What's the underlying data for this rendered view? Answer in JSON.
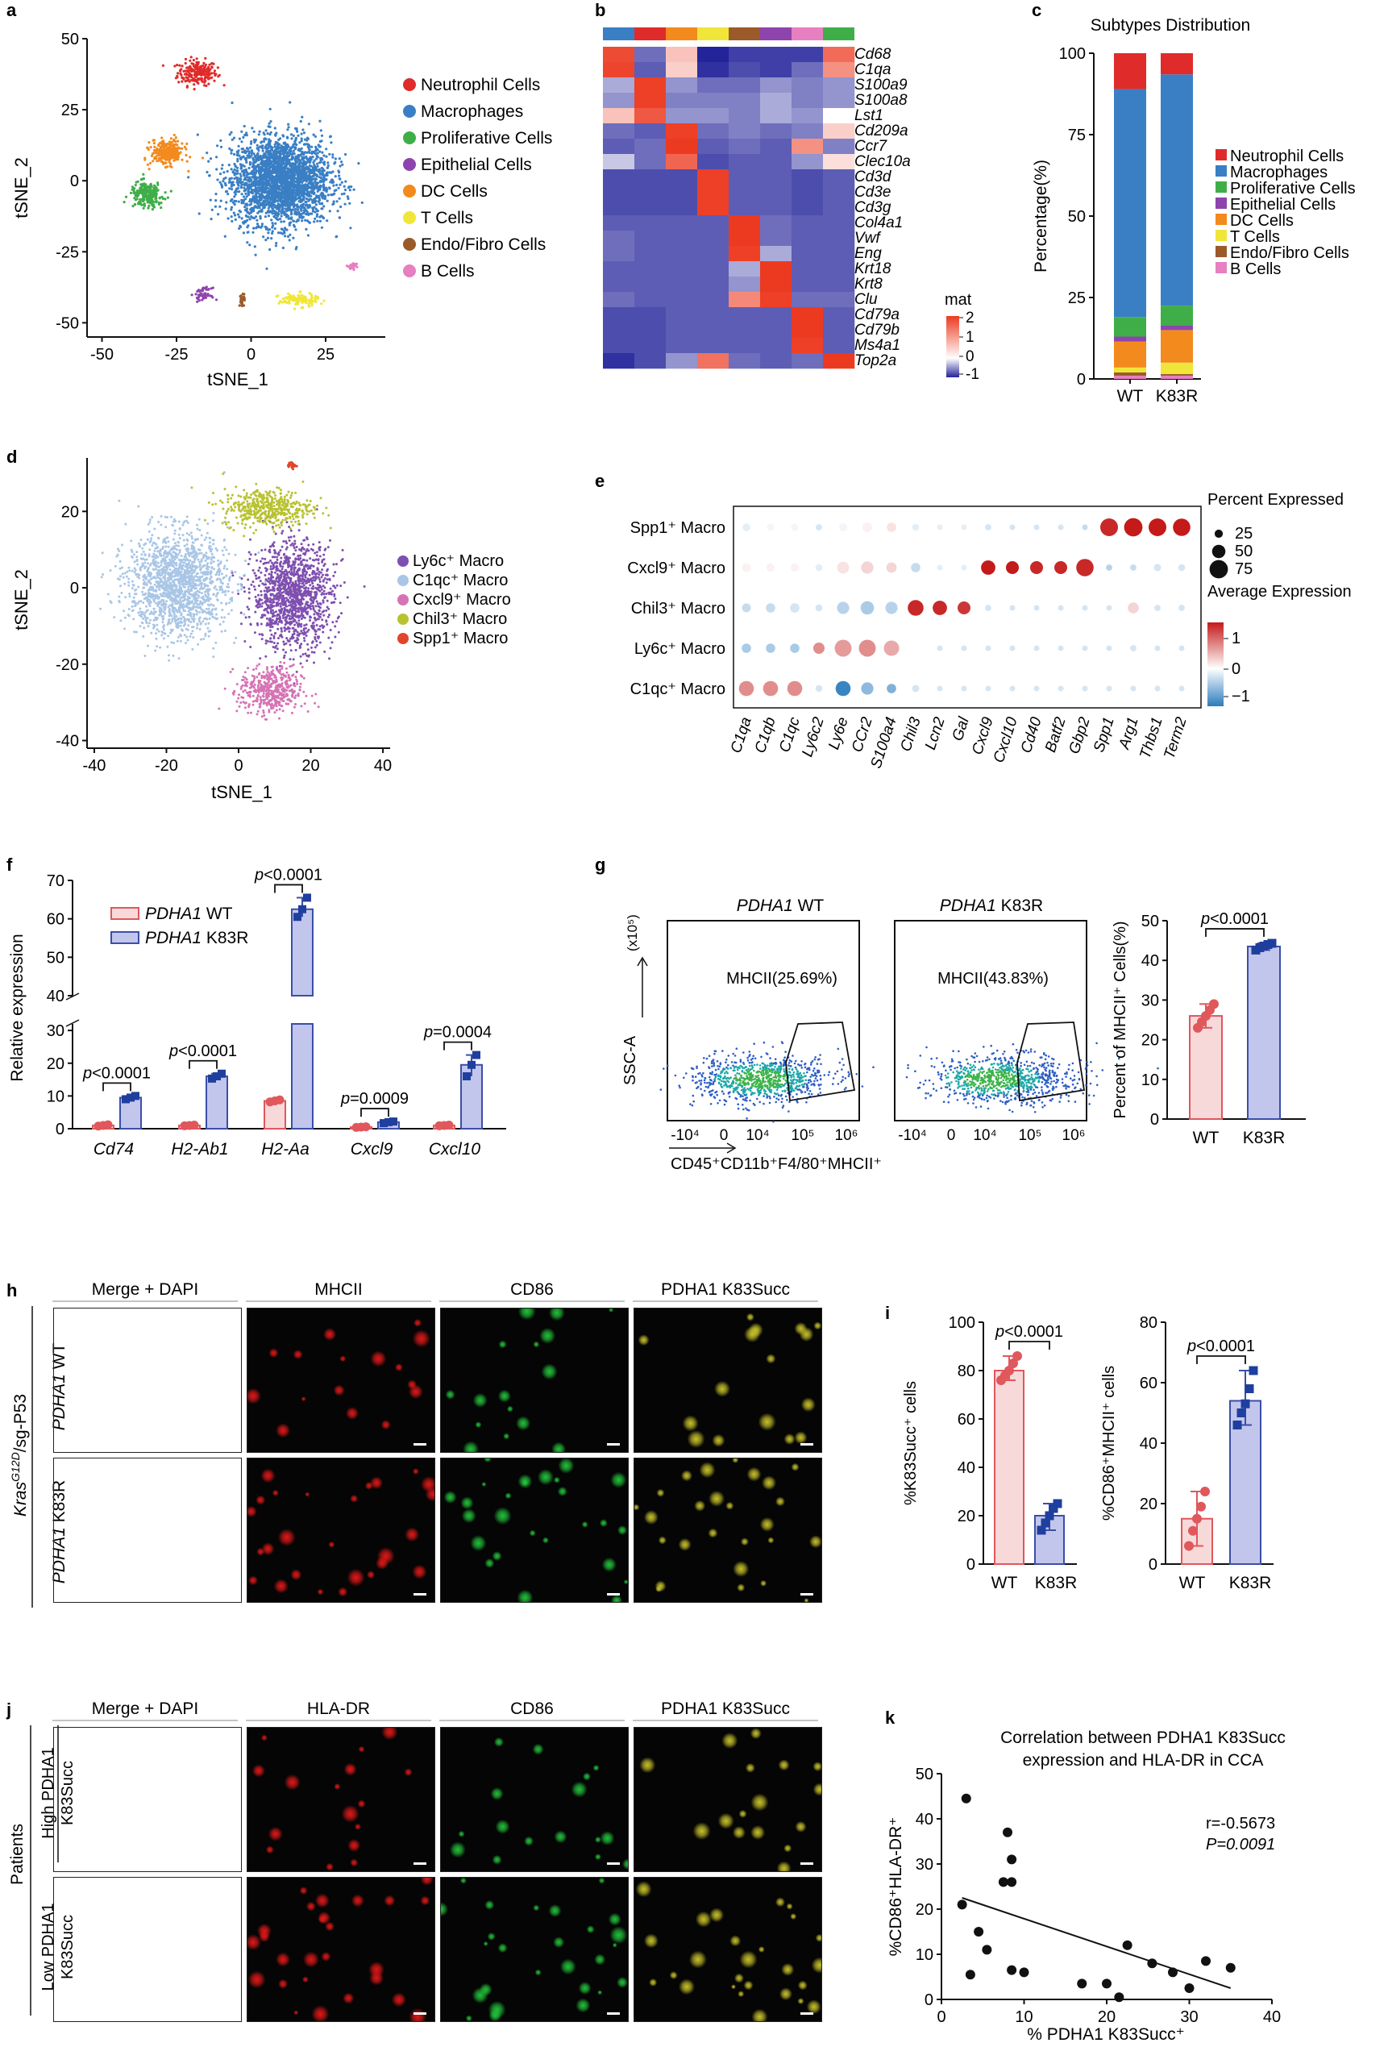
{
  "panels": {
    "a": "a",
    "b": "b",
    "c": "c",
    "d": "d",
    "e": "e",
    "f": "f",
    "g": "g",
    "h": "h",
    "i": "i",
    "j": "j",
    "k": "k"
  },
  "colors": {
    "neutrophil": "#e02b2b",
    "macrophage": "#3a7fc4",
    "proliferative": "#3fae49",
    "epithelial": "#8e44ad",
    "dc": "#f28a1e",
    "tcell": "#f0e63a",
    "endo": "#9b5a2a",
    "bcell": "#e77fc0",
    "ly6c": "#7e4fb0",
    "c1qc": "#a9c6e6",
    "cxcl9": "#d673b5",
    "chil3": "#b8c230",
    "spp1": "#e0452b",
    "wt_bar": "#f7d9da",
    "wt_edge": "#e0575c",
    "k83r_bar": "#c3c6ec",
    "k83r_edge": "#3a4fa8",
    "point_dark": "#1f3f9e"
  },
  "chart_data": [
    {
      "id": "a",
      "type": "scatter",
      "xlabel": "tSNE_1",
      "ylabel": "tSNE_2",
      "xticks": [
        "-50",
        "-25",
        "0",
        "25"
      ],
      "yticks": [
        "50",
        "25",
        "0",
        "-25",
        "-50"
      ],
      "xlim": [
        -55,
        45
      ],
      "ylim": [
        -55,
        50
      ],
      "legend": [
        "Neutrophil Cells",
        "Macrophages",
        "Proliferative Cells",
        "Epithelial Cells",
        "DC Cells",
        "T Cells",
        "Endo/Fibro Cells",
        "B Cells"
      ],
      "clusters": [
        {
          "name": "Neutrophil Cells",
          "cx": -18,
          "cy": 38,
          "sx": 6,
          "sy": 4
        },
        {
          "name": "Macrophages",
          "cx": 10,
          "cy": 0,
          "sx": 15,
          "sy": 14
        },
        {
          "name": "Proliferative Cells",
          "cx": -35,
          "cy": -5,
          "sx": 5,
          "sy": 4
        },
        {
          "name": "Epithelial Cells",
          "cx": -16,
          "cy": -40,
          "sx": 2.5,
          "sy": 2
        },
        {
          "name": "DC Cells",
          "cx": -28,
          "cy": 10,
          "sx": 5,
          "sy": 4
        },
        {
          "name": "T Cells",
          "cx": 16,
          "cy": -42,
          "sx": 6,
          "sy": 2
        },
        {
          "name": "Endo/Fibro Cells",
          "cx": -3,
          "cy": -42,
          "sx": 0.8,
          "sy": 2
        },
        {
          "name": "B Cells",
          "cx": 34,
          "cy": -30,
          "sx": 1.5,
          "sy": 1
        }
      ]
    },
    {
      "id": "b",
      "type": "heatmap",
      "rows": [
        "Cd68",
        "C1qa",
        "S100a9",
        "S100a8",
        "Lst1",
        "Cd209a",
        "Ccr7",
        "Clec10a",
        "Cd3d",
        "Cd3e",
        "Cd3g",
        "Col4a1",
        "Vwf",
        "Eng",
        "Krt18",
        "Krt8",
        "Clu",
        "Cd79a",
        "Cd79b",
        "Ms4a1",
        "Top2a"
      ],
      "legend_title": "mat",
      "legend_ticks": [
        "2",
        "1",
        "0",
        "-1"
      ],
      "range": [
        -1,
        2.2
      ],
      "values": [
        [
          1.8,
          -0.5,
          0.3,
          -1,
          -0.8,
          -0.8,
          -0.8,
          1.3
        ],
        [
          1.9,
          -0.6,
          0.2,
          -0.9,
          -0.7,
          -0.8,
          -0.5,
          0.8
        ],
        [
          -0.2,
          2,
          -0.3,
          -0.5,
          -0.5,
          -0.3,
          -0.4,
          -0.3
        ],
        [
          -0.3,
          2,
          -0.4,
          -0.4,
          -0.4,
          -0.2,
          -0.4,
          -0.3
        ],
        [
          0.3,
          1.6,
          -0.3,
          -0.3,
          -0.4,
          -0.2,
          -0.3,
          0
        ],
        [
          -0.5,
          -0.6,
          2,
          -0.5,
          -0.4,
          -0.5,
          -0.4,
          0.2
        ],
        [
          -0.6,
          -0.5,
          2.1,
          -0.6,
          -0.5,
          -0.6,
          0.8,
          -0.4
        ],
        [
          -0.1,
          -0.5,
          1.4,
          -0.7,
          -0.6,
          -0.6,
          -0.3,
          0.1
        ],
        [
          -0.7,
          -0.7,
          -0.7,
          2,
          -0.6,
          -0.6,
          -0.7,
          -0.6
        ],
        [
          -0.7,
          -0.7,
          -0.7,
          2,
          -0.6,
          -0.6,
          -0.7,
          -0.6
        ],
        [
          -0.7,
          -0.7,
          -0.7,
          2,
          -0.6,
          -0.6,
          -0.7,
          -0.6
        ],
        [
          -0.6,
          -0.6,
          -0.6,
          -0.6,
          2.1,
          -0.5,
          -0.6,
          -0.6
        ],
        [
          -0.5,
          -0.6,
          -0.6,
          -0.6,
          2.1,
          -0.5,
          -0.6,
          -0.6
        ],
        [
          -0.5,
          -0.6,
          -0.6,
          -0.6,
          2,
          -0.2,
          -0.6,
          -0.6
        ],
        [
          -0.6,
          -0.6,
          -0.6,
          -0.6,
          -0.2,
          2.1,
          -0.6,
          -0.6
        ],
        [
          -0.6,
          -0.6,
          -0.6,
          -0.6,
          -0.3,
          2.1,
          -0.6,
          -0.6
        ],
        [
          -0.5,
          -0.6,
          -0.6,
          -0.6,
          0.9,
          2,
          -0.5,
          -0.5
        ],
        [
          -0.7,
          -0.7,
          -0.6,
          -0.6,
          -0.6,
          -0.6,
          2.1,
          -0.6
        ],
        [
          -0.7,
          -0.7,
          -0.6,
          -0.6,
          -0.6,
          -0.6,
          2.1,
          -0.6
        ],
        [
          -0.7,
          -0.7,
          -0.6,
          -0.6,
          -0.6,
          -0.6,
          2,
          -0.6
        ],
        [
          -0.9,
          -0.7,
          -0.3,
          1.2,
          -0.5,
          -0.6,
          -0.5,
          2.1
        ]
      ]
    },
    {
      "id": "c",
      "type": "bar",
      "stacked": true,
      "title": "Subtypes Distribution",
      "ylabel": "Percentage(%)",
      "categories": [
        "WT",
        "K83R"
      ],
      "yticks": [
        "0",
        "25",
        "50",
        "75",
        "100"
      ],
      "ylim": [
        0,
        100
      ],
      "series": [
        {
          "name": "B Cells",
          "values": [
            1,
            1
          ]
        },
        {
          "name": "Endo/Fibro Cells",
          "values": [
            1,
            0.5
          ]
        },
        {
          "name": "T Cells",
          "values": [
            1.5,
            3.5
          ]
        },
        {
          "name": "DC Cells",
          "values": [
            8,
            10
          ]
        },
        {
          "name": "Epithelial Cells",
          "values": [
            1.5,
            1.5
          ]
        },
        {
          "name": "Proliferative Cells",
          "values": [
            6,
            6
          ]
        },
        {
          "name": "Macrophages",
          "values": [
            70,
            71
          ]
        },
        {
          "name": "Neutrophil Cells",
          "values": [
            11,
            6.5
          ]
        }
      ]
    },
    {
      "id": "d",
      "type": "scatter",
      "xlabel": "tSNE_1",
      "ylabel": "tSNE_2",
      "xticks": [
        "-40",
        "-20",
        "0",
        "20",
        "40"
      ],
      "yticks": [
        "20",
        "0",
        "-20",
        "-40"
      ],
      "xlim": [
        -42,
        42
      ],
      "ylim": [
        -42,
        34
      ],
      "legend": [
        "Ly6c⁺ Macro",
        "C1qc⁺ Macro",
        "Cxcl9⁺ Macro",
        "Chil3⁺ Macro",
        "Spp1⁺ Macro"
      ],
      "clusters": [
        {
          "name": "Ly6c⁺ Macro",
          "cx": 15,
          "cy": -2,
          "sx": 9,
          "sy": 11
        },
        {
          "name": "C1qc⁺ Macro",
          "cx": -17,
          "cy": 1,
          "sx": 11,
          "sy": 11
        },
        {
          "name": "Cxcl9⁺ Macro",
          "cx": 9,
          "cy": -27,
          "sx": 7,
          "sy": 5
        },
        {
          "name": "Chil3⁺ Macro",
          "cx": 8,
          "cy": 21,
          "sx": 10,
          "sy": 4
        },
        {
          "name": "Spp1⁺ Macro",
          "cx": 15,
          "cy": 32,
          "sx": 1,
          "sy": 0.6
        }
      ]
    },
    {
      "id": "e",
      "type": "scatter",
      "subtype": "dotplot",
      "rows": [
        "Spp1⁺ Macro",
        "Cxcl9⁺ Macro",
        "Chil3⁺ Macro",
        "Ly6c⁺ Macro",
        "C1qc⁺ Macro"
      ],
      "cols": [
        "C1qa",
        "C1qb",
        "C1qc",
        "Ly6c2",
        "Ly6e",
        "CCr2",
        "S100a4",
        "Chil3",
        "Lcn2",
        "Gal",
        "Cxcl9",
        "Cxcl10",
        "Cd40",
        "Batf2",
        "Gbp2",
        "Spp1",
        "Arg1",
        "Thbs1",
        "Term2"
      ],
      "size_title": "Percent Expressed",
      "size_ticks": [
        "25",
        "50",
        "75"
      ],
      "color_title": "Average Expression",
      "color_ticks": [
        "1",
        "0",
        "−1"
      ],
      "expression": [
        [
          -0.2,
          -0.1,
          -0.1,
          -0.3,
          -0.1,
          0.1,
          0.2,
          -0.2,
          -0.2,
          -0.2,
          -0.3,
          -0.3,
          -0.3,
          -0.3,
          -0.4,
          1.5,
          1.6,
          1.6,
          1.6
        ],
        [
          0.1,
          0.1,
          0.1,
          -0.2,
          0.2,
          0.3,
          0.3,
          -0.4,
          -0.2,
          -0.2,
          1.6,
          1.6,
          1.5,
          1.5,
          1.5,
          -0.5,
          -0.4,
          -0.3,
          -0.3
        ],
        [
          -0.4,
          -0.4,
          -0.3,
          -0.3,
          -0.5,
          -0.6,
          -0.5,
          1.5,
          1.5,
          1.4,
          -0.3,
          -0.3,
          -0.3,
          -0.3,
          -0.3,
          -0.3,
          0.3,
          -0.3,
          -0.3
        ],
        [
          -0.6,
          -0.6,
          -0.6,
          0.8,
          0.7,
          0.8,
          0.6,
          0,
          -0.3,
          -0.3,
          -0.3,
          -0.3,
          -0.3,
          -0.3,
          -0.3,
          -0.3,
          -0.3,
          -0.3,
          -0.3
        ],
        [
          0.8,
          0.8,
          0.8,
          -0.3,
          -1.4,
          -0.8,
          -0.9,
          -0.3,
          -0.3,
          -0.3,
          -0.3,
          -0.3,
          -0.3,
          -0.3,
          -0.3,
          -0.3,
          -0.3,
          -0.3,
          -0.3
        ]
      ],
      "percent": [
        [
          22,
          20,
          20,
          15,
          25,
          32,
          30,
          18,
          12,
          12,
          15,
          12,
          12,
          12,
          12,
          72,
          75,
          72,
          70
        ],
        [
          28,
          25,
          25,
          18,
          42,
          45,
          35,
          30,
          12,
          12,
          55,
          48,
          48,
          48,
          70,
          15,
          15,
          20,
          18
        ],
        [
          28,
          30,
          30,
          18,
          45,
          50,
          45,
          62,
          55,
          48,
          15,
          12,
          12,
          12,
          12,
          12,
          38,
          15,
          15
        ],
        [
          30,
          30,
          30,
          40,
          68,
          68,
          60,
          35,
          12,
          12,
          12,
          12,
          12,
          12,
          12,
          12,
          15,
          12,
          12
        ],
        [
          58,
          58,
          58,
          18,
          58,
          45,
          30,
          20,
          12,
          12,
          12,
          12,
          12,
          12,
          12,
          12,
          12,
          12,
          12
        ]
      ]
    },
    {
      "id": "f",
      "type": "bar",
      "ylabel": "Relative expression",
      "categories": [
        "Cd74",
        "H2-Ab1",
        "H2-Aa",
        "Cxcl9",
        "Cxcl10"
      ],
      "series": [
        {
          "name_gene": "PDHA1",
          "name_rest": " WT",
          "values": [
            1,
            1,
            8.5,
            0.5,
            1
          ]
        },
        {
          "name_gene": "PDHA1",
          "name_rest": " K83R",
          "values": [
            9.5,
            16,
            62.5,
            2,
            19.5
          ]
        }
      ],
      "points_wt": [
        [
          0.8,
          1.0,
          1.2
        ],
        [
          0.9,
          1.0,
          1.1
        ],
        [
          8.2,
          8.5,
          8.8
        ],
        [
          0.4,
          0.5,
          0.6
        ],
        [
          0.9,
          1.0,
          1.1
        ]
      ],
      "points_k83r": [
        [
          9.0,
          9.5,
          10.0
        ],
        [
          15.3,
          16.0,
          16.8
        ],
        [
          60.5,
          62.5,
          65.5
        ],
        [
          1.7,
          2.0,
          2.2
        ],
        [
          16.0,
          19.5,
          22.5
        ]
      ],
      "yticks_low": [
        "0",
        "10",
        "20",
        "30"
      ],
      "yticks_high": [
        "40",
        "50",
        "60",
        "70"
      ],
      "pvalues": [
        "p<0.0001",
        "p<0.0001",
        "p<0.0001",
        "p=0.0009",
        "p=0.0004"
      ]
    },
    {
      "id": "g",
      "type": "scatter",
      "subtype": "flow",
      "plots": [
        {
          "gene": "PDHA1",
          "label": " WT",
          "gate": "MHCII(25.69%)"
        },
        {
          "gene": "PDHA1",
          "label": " K83R",
          "gate": "MHCII(43.83%)"
        }
      ],
      "ylabel": "SSC-A",
      "yunit": "(x10⁵)",
      "xlabel": "CD45⁺CD11b⁺F4/80⁺MHCII⁺",
      "xticks": [
        "-10⁴",
        "0",
        "10⁴",
        "10⁵",
        "10⁶"
      ]
    },
    {
      "id": "g2",
      "type": "bar",
      "ylabel": "Percent of MHCII⁺ Cells(%)",
      "categories": [
        "WT",
        "K83R"
      ],
      "yticks": [
        "0",
        "10",
        "20",
        "30",
        "40",
        "50"
      ],
      "ylim": [
        0,
        50
      ],
      "values": [
        26,
        43.5
      ],
      "points": [
        [
          23,
          24.5,
          26,
          27.5,
          29
        ],
        [
          42.6,
          43.2,
          43.6,
          44,
          44.3
        ]
      ],
      "pvalue": "p<0.0001"
    },
    {
      "id": "i1",
      "type": "bar",
      "ylabel": "%K83Succ⁺ cells",
      "categories": [
        "WT",
        "K83R"
      ],
      "yticks": [
        "0",
        "20",
        "40",
        "60",
        "80",
        "100"
      ],
      "ylim": [
        0,
        100
      ],
      "values": [
        80,
        20
      ],
      "points": [
        [
          76,
          78,
          80,
          83,
          86
        ],
        [
          14,
          17,
          20,
          23,
          25
        ]
      ],
      "pvalue": "p<0.0001"
    },
    {
      "id": "i2",
      "type": "bar",
      "ylabel": "%CD86⁺MHCII⁺ cells",
      "categories": [
        "WT",
        "K83R"
      ],
      "yticks": [
        "0",
        "20",
        "40",
        "60",
        "80"
      ],
      "ylim": [
        0,
        80
      ],
      "values": [
        15,
        54
      ],
      "points": [
        [
          6,
          11,
          15,
          19,
          24
        ],
        [
          46,
          50,
          53,
          58,
          64
        ]
      ],
      "pvalue": "p<0.0001"
    },
    {
      "id": "k",
      "type": "scatter",
      "title_line1": "Correlation between PDHA1 K83Succ",
      "title_line2": "expression and HLA-DR in CCA",
      "xlabel": "% PDHA1 K83Succ⁺",
      "ylabel": "%CD86⁺HLA-DR⁺",
      "xticks": [
        "0",
        "10",
        "20",
        "30",
        "40"
      ],
      "yticks": [
        "0",
        "10",
        "20",
        "30",
        "40",
        "50"
      ],
      "xlim": [
        0,
        40
      ],
      "ylim": [
        0,
        50
      ],
      "stat_r": "r=-0.5673",
      "stat_p": "P=0.0091",
      "points": [
        [
          3,
          44.5
        ],
        [
          2.5,
          21
        ],
        [
          3.5,
          5.5
        ],
        [
          4.5,
          15
        ],
        [
          5.5,
          11
        ],
        [
          7.5,
          26
        ],
        [
          8,
          37
        ],
        [
          8.5,
          26
        ],
        [
          8.5,
          31
        ],
        [
          8.5,
          6.5
        ],
        [
          10,
          6
        ],
        [
          17,
          3.5
        ],
        [
          20,
          3.5
        ],
        [
          21.5,
          0.5
        ],
        [
          22.5,
          12
        ],
        [
          25.5,
          8
        ],
        [
          28,
          6
        ],
        [
          30,
          2.5
        ],
        [
          32,
          8.5
        ],
        [
          35,
          7
        ]
      ],
      "fit": [
        [
          2.5,
          22.5
        ],
        [
          35,
          2.5
        ]
      ]
    }
  ],
  "h": {
    "columns": [
      "Merge + DAPI",
      "MHCII",
      "CD86",
      "PDHA1 K83Succ"
    ],
    "row1_gene": "PDHA1",
    "row1_rest": " WT",
    "row2_gene": "PDHA1",
    "row2_rest": " K83R",
    "group_gene": "Kras",
    "group_sup": "G12D",
    "group_rest": "/sg-P53"
  },
  "j": {
    "columns": [
      "Merge + DAPI",
      "HLA-DR",
      "CD86",
      "PDHA1 K83Succ"
    ],
    "row1_line1": "High PDHA1",
    "row1_line2": "K83Succ",
    "row2_line1": "Low PDHA1",
    "row2_line2": "K83Succ",
    "group": "Patients"
  }
}
